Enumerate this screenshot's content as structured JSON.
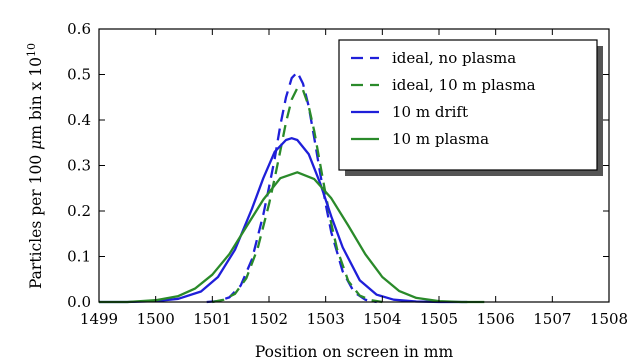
{
  "chart_data": {
    "type": "line",
    "title": "",
    "xlabel": "Position on screen in mm",
    "ylabel_prefix": "Particles per 100 ",
    "ylabel_mu": "μ",
    "ylabel_suffix": "m bin x 10",
    "ylabel_exponent": "10",
    "xlim": [
      1499,
      1508
    ],
    "ylim": [
      0.0,
      0.6
    ],
    "xticks": [
      1499,
      1500,
      1501,
      1502,
      1503,
      1504,
      1505,
      1506,
      1507,
      1508
    ],
    "yticks": [
      0.0,
      0.1,
      0.2,
      0.3,
      0.4,
      0.5,
      0.6
    ],
    "grid": false,
    "legend_position": "top-right",
    "series": [
      {
        "name": "ideal, no plasma",
        "color": "#1f1fd9",
        "style": "dashed",
        "x": [
          1500.9,
          1501.1,
          1501.3,
          1501.5,
          1501.7,
          1501.9,
          1502.0,
          1502.1,
          1502.2,
          1502.3,
          1502.4,
          1502.5,
          1502.6,
          1502.7,
          1502.8,
          1502.9,
          1503.0,
          1503.1,
          1503.3,
          1503.5,
          1503.7,
          1503.9
        ],
        "y": [
          0.0,
          0.002,
          0.01,
          0.036,
          0.094,
          0.192,
          0.252,
          0.315,
          0.388,
          0.45,
          0.492,
          0.505,
          0.48,
          0.43,
          0.36,
          0.285,
          0.215,
          0.153,
          0.067,
          0.022,
          0.005,
          0.0
        ]
      },
      {
        "name": "ideal, 10 m plasma",
        "color": "#2a8a2a",
        "style": "dashed",
        "x": [
          1501.0,
          1501.2,
          1501.4,
          1501.6,
          1501.8,
          1502.0,
          1502.1,
          1502.2,
          1502.3,
          1502.4,
          1502.5,
          1502.6,
          1502.7,
          1502.8,
          1502.9,
          1503.0,
          1503.1,
          1503.2,
          1503.4,
          1503.6,
          1503.8,
          1504.0
        ],
        "y": [
          0.0,
          0.005,
          0.018,
          0.052,
          0.118,
          0.215,
          0.272,
          0.332,
          0.395,
          0.445,
          0.47,
          0.466,
          0.43,
          0.375,
          0.305,
          0.236,
          0.172,
          0.117,
          0.046,
          0.014,
          0.004,
          0.0
        ]
      },
      {
        "name": "10 m drift",
        "color": "#1f1fd9",
        "style": "solid",
        "x": [
          1499.0,
          1499.5,
          1500.0,
          1500.4,
          1500.8,
          1501.1,
          1501.4,
          1501.7,
          1501.9,
          1502.1,
          1502.3,
          1502.4,
          1502.5,
          1502.7,
          1502.9,
          1503.1,
          1503.3,
          1503.6,
          1503.9,
          1504.2,
          1504.6,
          1505.0,
          1505.5
        ],
        "y": [
          0.0,
          0.0,
          0.002,
          0.007,
          0.023,
          0.055,
          0.115,
          0.205,
          0.272,
          0.33,
          0.356,
          0.36,
          0.356,
          0.325,
          0.262,
          0.188,
          0.12,
          0.048,
          0.016,
          0.005,
          0.001,
          0.0,
          0.0
        ]
      },
      {
        "name": "10 m plasma",
        "color": "#2a8a2a",
        "style": "solid",
        "x": [
          1499.0,
          1499.5,
          1500.0,
          1500.4,
          1500.7,
          1501.0,
          1501.3,
          1501.6,
          1501.9,
          1502.2,
          1502.5,
          1502.8,
          1503.1,
          1503.4,
          1503.7,
          1504.0,
          1504.3,
          1504.6,
          1505.0,
          1505.4,
          1505.8
        ],
        "y": [
          0.0,
          0.0,
          0.004,
          0.013,
          0.03,
          0.06,
          0.105,
          0.165,
          0.225,
          0.272,
          0.285,
          0.27,
          0.228,
          0.168,
          0.105,
          0.055,
          0.024,
          0.009,
          0.002,
          0.0,
          0.0
        ]
      }
    ]
  }
}
